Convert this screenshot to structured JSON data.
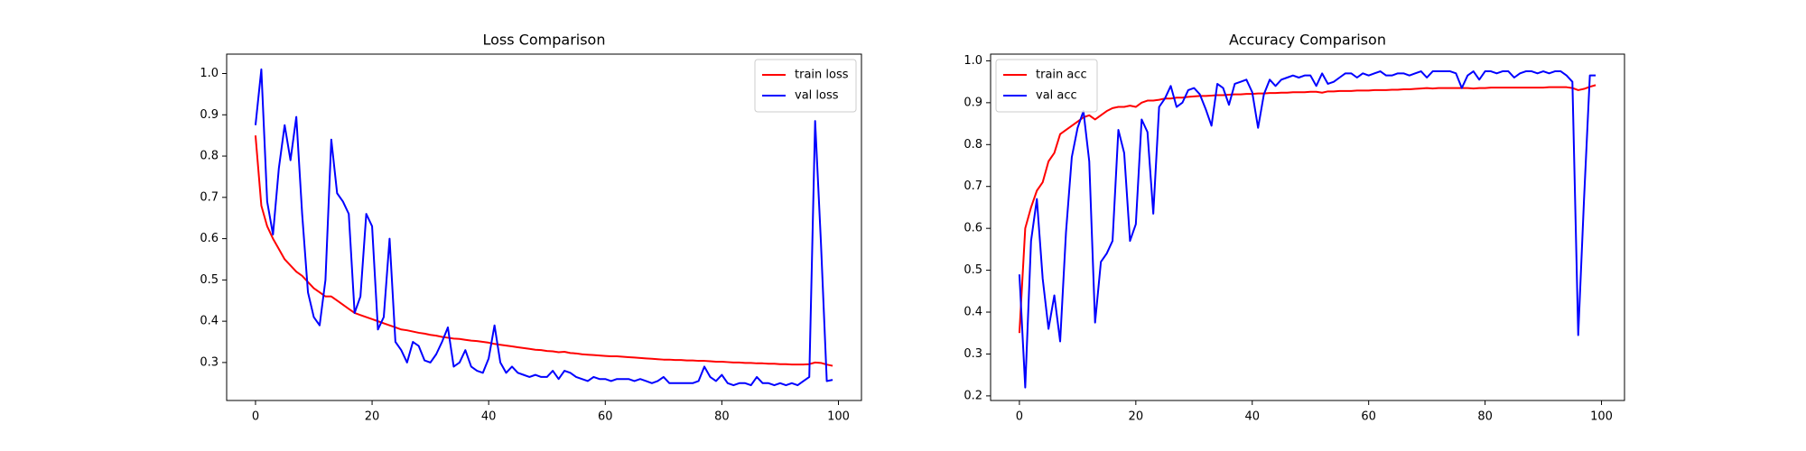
{
  "chart_data": [
    {
      "type": "line",
      "title": "Loss Comparison",
      "x": [
        0,
        1,
        2,
        3,
        4,
        5,
        6,
        7,
        8,
        9,
        10,
        11,
        12,
        13,
        14,
        15,
        16,
        17,
        18,
        19,
        20,
        21,
        22,
        23,
        24,
        25,
        26,
        27,
        28,
        29,
        30,
        31,
        32,
        33,
        34,
        35,
        36,
        37,
        38,
        39,
        40,
        41,
        42,
        43,
        44,
        45,
        46,
        47,
        48,
        49,
        50,
        51,
        52,
        53,
        54,
        55,
        56,
        57,
        58,
        59,
        60,
        61,
        62,
        63,
        64,
        65,
        66,
        67,
        68,
        69,
        70,
        71,
        72,
        73,
        74,
        75,
        76,
        77,
        78,
        79,
        80,
        81,
        82,
        83,
        84,
        85,
        86,
        87,
        88,
        89,
        90,
        91,
        92,
        93,
        94,
        95,
        96,
        97,
        98,
        99
      ],
      "series": [
        {
          "name": "train loss",
          "color": "#ff0000",
          "values": [
            0.85,
            0.68,
            0.63,
            0.6,
            0.575,
            0.55,
            0.535,
            0.52,
            0.51,
            0.495,
            0.48,
            0.47,
            0.46,
            0.46,
            0.45,
            0.44,
            0.43,
            0.42,
            0.415,
            0.41,
            0.405,
            0.4,
            0.395,
            0.39,
            0.385,
            0.38,
            0.378,
            0.375,
            0.372,
            0.37,
            0.367,
            0.365,
            0.362,
            0.36,
            0.358,
            0.357,
            0.355,
            0.353,
            0.352,
            0.35,
            0.348,
            0.345,
            0.343,
            0.341,
            0.339,
            0.337,
            0.335,
            0.333,
            0.331,
            0.33,
            0.328,
            0.327,
            0.325,
            0.326,
            0.323,
            0.322,
            0.32,
            0.319,
            0.318,
            0.317,
            0.316,
            0.315,
            0.315,
            0.314,
            0.313,
            0.312,
            0.311,
            0.31,
            0.309,
            0.308,
            0.307,
            0.307,
            0.306,
            0.306,
            0.305,
            0.305,
            0.304,
            0.304,
            0.303,
            0.302,
            0.302,
            0.301,
            0.3,
            0.3,
            0.299,
            0.299,
            0.298,
            0.298,
            0.297,
            0.297,
            0.296,
            0.296,
            0.295,
            0.295,
            0.295,
            0.296,
            0.3,
            0.299,
            0.295,
            0.292
          ]
        },
        {
          "name": "val loss",
          "color": "#0000ff",
          "values": [
            0.875,
            1.01,
            0.69,
            0.61,
            0.77,
            0.875,
            0.79,
            0.895,
            0.66,
            0.47,
            0.41,
            0.39,
            0.5,
            0.84,
            0.71,
            0.69,
            0.66,
            0.42,
            0.46,
            0.66,
            0.63,
            0.38,
            0.41,
            0.6,
            0.35,
            0.33,
            0.3,
            0.35,
            0.34,
            0.305,
            0.3,
            0.32,
            0.35,
            0.385,
            0.29,
            0.3,
            0.33,
            0.29,
            0.28,
            0.275,
            0.31,
            0.39,
            0.3,
            0.275,
            0.29,
            0.275,
            0.27,
            0.265,
            0.27,
            0.265,
            0.265,
            0.28,
            0.26,
            0.28,
            0.275,
            0.265,
            0.26,
            0.255,
            0.265,
            0.26,
            0.26,
            0.255,
            0.26,
            0.26,
            0.26,
            0.255,
            0.26,
            0.255,
            0.25,
            0.255,
            0.265,
            0.25,
            0.25,
            0.25,
            0.25,
            0.25,
            0.255,
            0.29,
            0.265,
            0.255,
            0.27,
            0.25,
            0.245,
            0.25,
            0.25,
            0.245,
            0.265,
            0.25,
            0.25,
            0.245,
            0.25,
            0.245,
            0.25,
            0.245,
            0.255,
            0.265,
            0.885,
            0.59,
            0.255,
            0.258
          ]
        }
      ],
      "xlim": [
        -4.95,
        103.95
      ],
      "ylim": [
        0.208,
        1.047
      ],
      "xticks": [
        0,
        20,
        40,
        60,
        80,
        100
      ],
      "yticks": [
        0.3,
        0.4,
        0.5,
        0.6,
        0.7,
        0.8,
        0.9,
        {
          "value": 1,
          "label": "1.0"
        }
      ],
      "legend": "upper right"
    },
    {
      "type": "line",
      "title": "Accuracy Comparison",
      "x": [
        0,
        1,
        2,
        3,
        4,
        5,
        6,
        7,
        8,
        9,
        10,
        11,
        12,
        13,
        14,
        15,
        16,
        17,
        18,
        19,
        20,
        21,
        22,
        23,
        24,
        25,
        26,
        27,
        28,
        29,
        30,
        31,
        32,
        33,
        34,
        35,
        36,
        37,
        38,
        39,
        40,
        41,
        42,
        43,
        44,
        45,
        46,
        47,
        48,
        49,
        50,
        51,
        52,
        53,
        54,
        55,
        56,
        57,
        58,
        59,
        60,
        61,
        62,
        63,
        64,
        65,
        66,
        67,
        68,
        69,
        70,
        71,
        72,
        73,
        74,
        75,
        76,
        77,
        78,
        79,
        80,
        81,
        82,
        83,
        84,
        85,
        86,
        87,
        88,
        89,
        90,
        91,
        92,
        93,
        94,
        95,
        96,
        97,
        98,
        99
      ],
      "series": [
        {
          "name": "train acc",
          "color": "#ff0000",
          "values": [
            0.35,
            0.6,
            0.65,
            0.69,
            0.71,
            0.76,
            0.78,
            0.825,
            0.835,
            0.845,
            0.855,
            0.865,
            0.87,
            0.86,
            0.87,
            0.88,
            0.887,
            0.89,
            0.89,
            0.893,
            0.89,
            0.9,
            0.905,
            0.905,
            0.907,
            0.91,
            0.91,
            0.912,
            0.912,
            0.914,
            0.915,
            0.916,
            0.916,
            0.917,
            0.918,
            0.918,
            0.919,
            0.92,
            0.92,
            0.921,
            0.921,
            0.922,
            0.922,
            0.923,
            0.923,
            0.924,
            0.924,
            0.925,
            0.925,
            0.925,
            0.926,
            0.926,
            0.924,
            0.927,
            0.927,
            0.928,
            0.928,
            0.928,
            0.929,
            0.929,
            0.929,
            0.93,
            0.93,
            0.93,
            0.931,
            0.931,
            0.932,
            0.932,
            0.933,
            0.934,
            0.935,
            0.934,
            0.935,
            0.935,
            0.935,
            0.935,
            0.935,
            0.935,
            0.934,
            0.935,
            0.935,
            0.936,
            0.936,
            0.936,
            0.936,
            0.936,
            0.936,
            0.936,
            0.936,
            0.936,
            0.936,
            0.937,
            0.937,
            0.937,
            0.937,
            0.935,
            0.93,
            0.933,
            0.938,
            0.942
          ]
        },
        {
          "name": "val acc",
          "color": "#0000ff",
          "values": [
            0.49,
            0.22,
            0.57,
            0.67,
            0.48,
            0.36,
            0.44,
            0.33,
            0.59,
            0.77,
            0.84,
            0.88,
            0.76,
            0.375,
            0.52,
            0.54,
            0.57,
            0.835,
            0.78,
            0.57,
            0.61,
            0.86,
            0.83,
            0.635,
            0.89,
            0.91,
            0.94,
            0.89,
            0.9,
            0.93,
            0.935,
            0.92,
            0.885,
            0.845,
            0.945,
            0.935,
            0.895,
            0.945,
            0.95,
            0.955,
            0.925,
            0.84,
            0.92,
            0.955,
            0.94,
            0.955,
            0.96,
            0.965,
            0.96,
            0.965,
            0.965,
            0.94,
            0.97,
            0.945,
            0.95,
            0.96,
            0.97,
            0.97,
            0.96,
            0.97,
            0.965,
            0.97,
            0.975,
            0.965,
            0.965,
            0.97,
            0.97,
            0.965,
            0.97,
            0.975,
            0.96,
            0.975,
            0.975,
            0.975,
            0.975,
            0.97,
            0.935,
            0.965,
            0.975,
            0.955,
            0.975,
            0.975,
            0.97,
            0.975,
            0.975,
            0.96,
            0.97,
            0.975,
            0.975,
            0.97,
            0.975,
            0.97,
            0.975,
            0.975,
            0.965,
            0.95,
            0.345,
            0.67,
            0.965,
            0.965
          ]
        }
      ],
      "xlim": [
        -4.95,
        103.95
      ],
      "ylim": [
        0.189,
        1.016
      ],
      "xticks": [
        0,
        20,
        40,
        60,
        80,
        100
      ],
      "yticks": [
        0.2,
        0.3,
        0.4,
        0.5,
        0.6,
        0.7,
        0.8,
        0.9,
        {
          "value": 1,
          "label": "1.0"
        }
      ],
      "legend": "upper left"
    }
  ]
}
